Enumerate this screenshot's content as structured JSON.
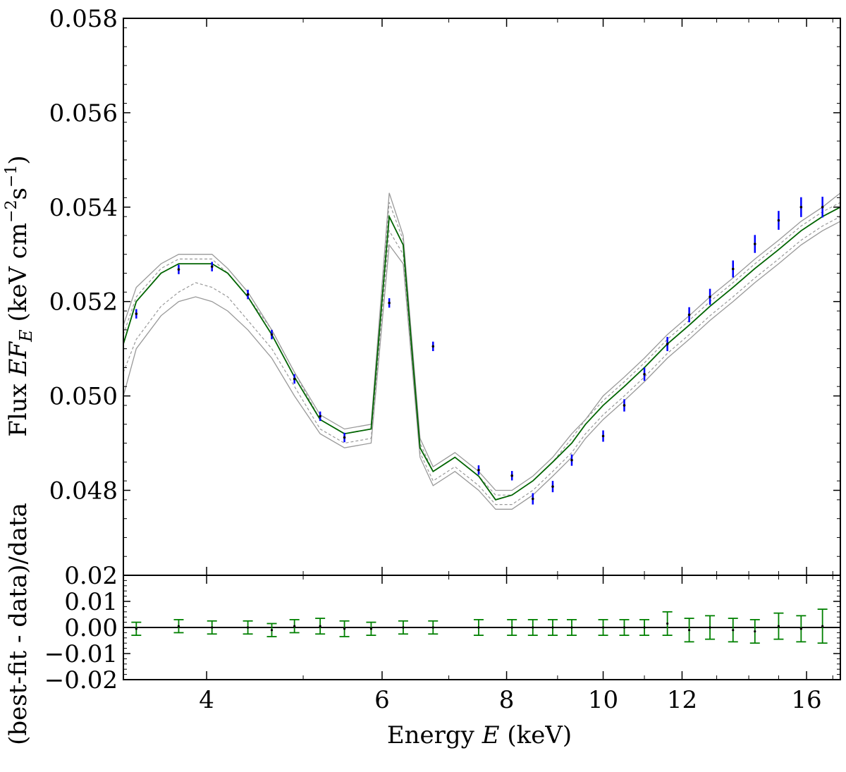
{
  "chart_data": {
    "type": "line",
    "xscale": "log",
    "xlim": [
      3.3,
      17.3
    ],
    "x_ticks": [
      4,
      6,
      8,
      10,
      12,
      16
    ],
    "xlabel": {
      "prefix": "Energy ",
      "var": "E",
      "suffix": " (keV)"
    },
    "ylabel_top": {
      "prefix": "Flux ",
      "var": "EF",
      "sub": "E",
      "units": " (keV cm",
      "sup1": "−2",
      "mid": "s",
      "sup2": "−1",
      "close": ")"
    },
    "ylabel_bottom": "(best-fit - data)/data",
    "top_panel": {
      "ylim": [
        0.0462,
        0.058
      ],
      "y_ticks": [
        "0.048",
        "0.050",
        "0.052",
        "0.054",
        "0.056",
        "0.058"
      ],
      "model_energy": [
        3.3,
        3.4,
        3.6,
        3.75,
        3.9,
        4.05,
        4.2,
        4.4,
        4.65,
        4.9,
        5.2,
        5.5,
        5.85,
        6.1,
        6.3,
        6.55,
        6.75,
        7.1,
        7.5,
        7.8,
        8.1,
        8.5,
        8.9,
        9.3,
        9.6,
        10.0,
        10.5,
        11.0,
        11.6,
        12.2,
        12.8,
        13.5,
        14.2,
        15.0,
        15.8,
        16.6,
        17.3
      ],
      "model_flux": [
        0.0511,
        0.052,
        0.0526,
        0.0528,
        0.0528,
        0.0528,
        0.0526,
        0.0521,
        0.0513,
        0.0504,
        0.0495,
        0.0492,
        0.0493,
        0.0538,
        0.0532,
        0.0489,
        0.0484,
        0.0487,
        0.0483,
        0.0478,
        0.0479,
        0.0482,
        0.0486,
        0.049,
        0.0494,
        0.0498,
        0.0502,
        0.0506,
        0.0511,
        0.0515,
        0.0519,
        0.0523,
        0.0527,
        0.0531,
        0.0535,
        0.0538,
        0.054
      ],
      "upper_outer": [
        0.0515,
        0.0523,
        0.0528,
        0.053,
        0.053,
        0.053,
        0.0527,
        0.0522,
        0.0514,
        0.0505,
        0.0496,
        0.0493,
        0.0494,
        0.0543,
        0.0534,
        0.0491,
        0.0485,
        0.0488,
        0.0484,
        0.048,
        0.048,
        0.0483,
        0.0487,
        0.0492,
        0.0495,
        0.05,
        0.0504,
        0.0508,
        0.0513,
        0.0517,
        0.0521,
        0.0525,
        0.0529,
        0.0533,
        0.0537,
        0.054,
        0.0543
      ],
      "upper_inner": [
        0.0513,
        0.0521,
        0.0527,
        0.0529,
        0.0529,
        0.0529,
        0.0526,
        0.0521,
        0.0514,
        0.0505,
        0.0495,
        0.0492,
        0.0493,
        0.0541,
        0.0533,
        0.049,
        0.0484,
        0.0487,
        0.0483,
        0.0479,
        0.0479,
        0.0482,
        0.0486,
        0.0491,
        0.0495,
        0.0499,
        0.0503,
        0.0507,
        0.0512,
        0.0516,
        0.052,
        0.0524,
        0.0528,
        0.0532,
        0.0536,
        0.0539,
        0.0541
      ],
      "lower_inner": [
        0.0505,
        0.0512,
        0.0519,
        0.0522,
        0.0524,
        0.0523,
        0.0521,
        0.0516,
        0.051,
        0.0502,
        0.0493,
        0.049,
        0.0491,
        0.0535,
        0.053,
        0.0488,
        0.0482,
        0.0485,
        0.0481,
        0.0477,
        0.0477,
        0.048,
        0.0484,
        0.0488,
        0.0492,
        0.0496,
        0.05,
        0.0504,
        0.0509,
        0.0513,
        0.0517,
        0.0521,
        0.0525,
        0.0529,
        0.0533,
        0.0536,
        0.0538
      ],
      "lower_outer": [
        0.05,
        0.051,
        0.0517,
        0.052,
        0.0521,
        0.052,
        0.0518,
        0.0514,
        0.0508,
        0.05,
        0.0492,
        0.0489,
        0.049,
        0.0532,
        0.0528,
        0.0487,
        0.0481,
        0.0484,
        0.048,
        0.0476,
        0.0476,
        0.0479,
        0.0483,
        0.0487,
        0.0491,
        0.0495,
        0.0499,
        0.0503,
        0.0508,
        0.0512,
        0.0516,
        0.052,
        0.0524,
        0.0528,
        0.0532,
        0.0535,
        0.0537
      ],
      "data_energy": [
        3.4,
        3.75,
        4.05,
        4.4,
        4.65,
        4.9,
        5.2,
        5.5,
        6.1,
        6.75,
        7.5,
        8.1,
        8.5,
        8.9,
        9.3,
        10.0,
        10.5,
        11.0,
        11.6,
        12.2,
        12.8,
        13.5,
        14.2,
        15.0,
        15.8,
        16.6
      ],
      "data_flux": [
        0.05174,
        0.05268,
        0.05274,
        0.05215,
        0.0513,
        0.05036,
        0.04957,
        0.04912,
        0.05197,
        0.05105,
        0.04843,
        0.04831,
        0.04782,
        0.04808,
        0.04864,
        0.04915,
        0.0498,
        0.05046,
        0.0511,
        0.05172,
        0.0521,
        0.05269,
        0.05322,
        0.05372,
        0.054,
        0.054
      ],
      "data_err": [
        0.0001,
        0.0001,
        0.0001,
        0.0001,
        0.0001,
        0.0001,
        0.0001,
        0.0001,
        0.0001,
        0.0001,
        0.0001,
        0.0001,
        0.00012,
        0.00012,
        0.00012,
        0.00012,
        0.00013,
        0.00014,
        0.00015,
        0.00016,
        0.00017,
        0.00018,
        0.00019,
        0.0002,
        0.00021,
        0.00022
      ]
    },
    "bottom_panel": {
      "ylim": [
        -0.02,
        0.02
      ],
      "y_ticks": [
        "−0.02",
        "−0.01",
        "0.00",
        "0.01",
        "0.02"
      ],
      "residual_energy": [
        3.4,
        3.75,
        4.05,
        4.4,
        4.65,
        4.9,
        5.2,
        5.5,
        5.85,
        6.3,
        6.75,
        7.5,
        8.1,
        8.5,
        8.9,
        9.3,
        10.0,
        10.5,
        11.0,
        11.6,
        12.2,
        12.8,
        13.5,
        14.2,
        15.0,
        15.8,
        16.6
      ],
      "residual_value": [
        -0.0005,
        0.0005,
        0.0,
        0.0,
        -0.001,
        0.0005,
        0.0005,
        -0.0005,
        -0.0005,
        0.0,
        0.0,
        0.0,
        0.0,
        0.0,
        0.0,
        0.0,
        0.0,
        0.0,
        0.0,
        0.0015,
        -0.001,
        0.0,
        -0.001,
        -0.0015,
        0.0005,
        -0.0005,
        0.0005
      ],
      "residual_err": [
        0.0025,
        0.0025,
        0.0025,
        0.0025,
        0.0025,
        0.0025,
        0.003,
        0.003,
        0.0025,
        0.0025,
        0.0025,
        0.003,
        0.003,
        0.003,
        0.003,
        0.003,
        0.003,
        0.003,
        0.003,
        0.0045,
        0.0045,
        0.0045,
        0.0045,
        0.0045,
        0.005,
        0.005,
        0.0065
      ]
    },
    "colors": {
      "model": "#006400",
      "band": "#999999",
      "data_err": "#0000ff",
      "residual": "#008000",
      "axes": "#000000"
    }
  }
}
